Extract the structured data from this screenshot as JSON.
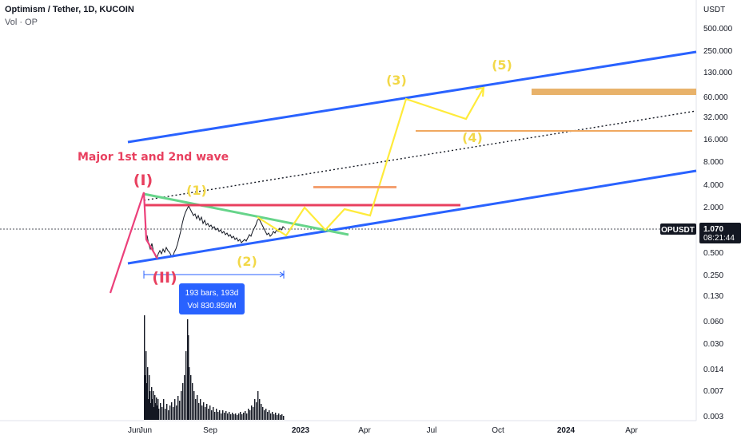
{
  "header": {
    "title": "Optimism / Tether, 1D, KUCOIN",
    "indicator": "Vol · OP"
  },
  "chart_data": {
    "type": "line",
    "symbol": "OPUSDT",
    "y_axis_unit": "USDT",
    "y_scale": "log",
    "y_ticks": [
      "500.000",
      "250.000",
      "130.000",
      "60.000",
      "32.000",
      "16.000",
      "8.000",
      "4.000",
      "2.000",
      "0.500",
      "0.250",
      "0.130",
      "0.060",
      "0.030",
      "0.014",
      "0.007",
      "0.003"
    ],
    "x_ticks": [
      "Jun",
      "Sep",
      "2023",
      "Apr",
      "Jul",
      "Oct",
      "2024",
      "Apr"
    ],
    "last_price": "1.070",
    "countdown": "08:21:44",
    "colors": {
      "channel": "#2962ff",
      "elliott_path": "#ffeb3b",
      "major_wave": "#e91e63",
      "resistance": "#e91e63",
      "triangle_top": "#4caf50",
      "target_zone": "#e0a050",
      "candles": "#131722"
    },
    "wave_labels": {
      "major_1": "(I)",
      "major_2": "(II)",
      "minor_1": "(1)",
      "minor_2": "(2)",
      "minor_3": "(3)",
      "minor_4": "(4)",
      "minor_5": "(5)"
    },
    "annotation": "Major 1st and 2nd wave",
    "measure": {
      "range_text": "193 bars, 193d",
      "volume_text": "Vol 830.859M"
    }
  }
}
